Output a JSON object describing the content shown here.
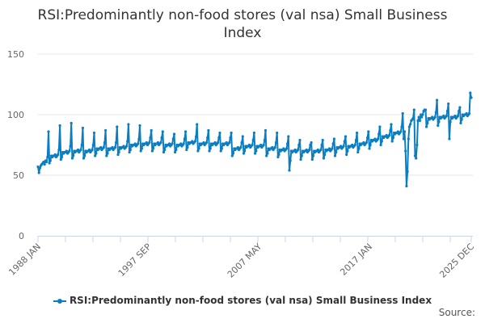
{
  "chart_data": {
    "type": "line",
    "title": "RSI:Predominantly non-food stores (val nsa) Small Business Index",
    "xlabel": "",
    "ylabel": "",
    "frequency": "monthly",
    "x_start": "1988 JAN",
    "x_end": "2025 DEC",
    "x_tick_labels": [
      "1988 JAN",
      "1997 SEP",
      "2007 MAY",
      "2017 JAN",
      "2025 DEC"
    ],
    "y_tick_labels": [
      "0",
      "50",
      "100",
      "150"
    ],
    "ylim": [
      0,
      150
    ],
    "grid": "horizontal",
    "legend_position": "bottom",
    "color": "#0a7ec2",
    "series": [
      {
        "name": "RSI:Predominantly non-food stores (val nsa) Small Business Index",
        "values": [
          57,
          52,
          56,
          58,
          59,
          60,
          61,
          59,
          62,
          61,
          65,
          86,
          60,
          62,
          66,
          65,
          66,
          66,
          67,
          65,
          66,
          67,
          71,
          91,
          63,
          65,
          69,
          68,
          69,
          69,
          70,
          68,
          69,
          70,
          74,
          93,
          64,
          66,
          70,
          69,
          70,
          70,
          71,
          69,
          70,
          71,
          75,
          89,
          64,
          66,
          70,
          69,
          70,
          70,
          71,
          69,
          70,
          71,
          75,
          85,
          66,
          68,
          72,
          71,
          72,
          72,
          73,
          71,
          72,
          73,
          77,
          87,
          66,
          68,
          72,
          71,
          72,
          72,
          73,
          71,
          72,
          73,
          77,
          90,
          67,
          69,
          73,
          72,
          73,
          73,
          74,
          72,
          73,
          74,
          78,
          92,
          69,
          71,
          75,
          74,
          75,
          75,
          76,
          74,
          75,
          76,
          80,
          91,
          70,
          72,
          76,
          75,
          76,
          76,
          77,
          75,
          76,
          77,
          81,
          87,
          70,
          72,
          76,
          75,
          76,
          76,
          77,
          75,
          76,
          77,
          81,
          86,
          69,
          71,
          75,
          74,
          75,
          75,
          76,
          74,
          75,
          76,
          80,
          84,
          69,
          71,
          75,
          74,
          75,
          75,
          76,
          74,
          75,
          76,
          80,
          86,
          71,
          73,
          77,
          76,
          77,
          77,
          78,
          76,
          77,
          78,
          82,
          92,
          70,
          72,
          76,
          75,
          76,
          76,
          77,
          75,
          76,
          77,
          81,
          87,
          70,
          72,
          76,
          75,
          76,
          76,
          77,
          75,
          76,
          77,
          81,
          85,
          70,
          72,
          76,
          75,
          76,
          76,
          77,
          75,
          76,
          77,
          81,
          85,
          66,
          68,
          72,
          71,
          72,
          72,
          73,
          71,
          72,
          73,
          77,
          82,
          68,
          70,
          74,
          73,
          74,
          74,
          75,
          73,
          74,
          75,
          79,
          85,
          68,
          70,
          74,
          73,
          74,
          74,
          75,
          73,
          74,
          75,
          79,
          87,
          66,
          68,
          72,
          71,
          72,
          72,
          73,
          71,
          72,
          73,
          77,
          85,
          65,
          67,
          71,
          70,
          71,
          71,
          72,
          70,
          71,
          72,
          76,
          82,
          54,
          62,
          70,
          69,
          70,
          70,
          71,
          69,
          70,
          71,
          75,
          79,
          63,
          66,
          70,
          69,
          70,
          70,
          71,
          69,
          70,
          71,
          75,
          77,
          63,
          66,
          70,
          69,
          70,
          70,
          71,
          69,
          70,
          71,
          75,
          79,
          64,
          67,
          71,
          70,
          71,
          71,
          72,
          70,
          71,
          72,
          76,
          80,
          66,
          69,
          73,
          72,
          73,
          73,
          74,
          72,
          73,
          74,
          78,
          82,
          67,
          70,
          74,
          73,
          74,
          74,
          75,
          73,
          74,
          75,
          79,
          85,
          69,
          72,
          76,
          75,
          76,
          76,
          77,
          75,
          76,
          77,
          81,
          86,
          72,
          75,
          79,
          78,
          79,
          79,
          80,
          78,
          79,
          80,
          84,
          90,
          75,
          78,
          82,
          81,
          82,
          82,
          83,
          81,
          82,
          83,
          87,
          92,
          78,
          81,
          85,
          84,
          85,
          85,
          86,
          84,
          85,
          86,
          90,
          101,
          80,
          86,
          70,
          41,
          53,
          80,
          90,
          92,
          95,
          96,
          97,
          104,
          66,
          64,
          75,
          95,
          98,
          95,
          100,
          98,
          100,
          103,
          104,
          104,
          90,
          93,
          97,
          96,
          97,
          97,
          98,
          96,
          97,
          98,
          102,
          112,
          91,
          94,
          98,
          97,
          98,
          98,
          99,
          97,
          98,
          99,
          103,
          109,
          80,
          94,
          98,
          97,
          98,
          98,
          99,
          97,
          98,
          99,
          103,
          106,
          93,
          96,
          100,
          99,
          100,
          100,
          101,
          99,
          100,
          101,
          118,
          114
        ]
      }
    ]
  },
  "legend_label": "RSI:Predominantly non-food stores (val nsa) Small Business Index",
  "source_label": "Source:"
}
